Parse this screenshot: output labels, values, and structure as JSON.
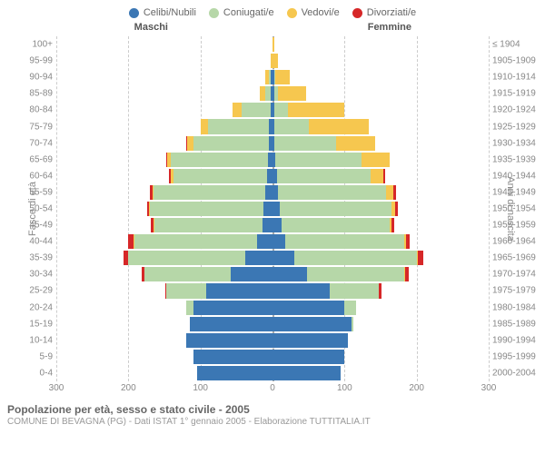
{
  "legend": [
    {
      "label": "Celibi/Nubili",
      "color": "#3b77b4"
    },
    {
      "label": "Coniugati/e",
      "color": "#b6d7a8"
    },
    {
      "label": "Vedovi/e",
      "color": "#f6c74f"
    },
    {
      "label": "Divorziati/e",
      "color": "#d62728"
    }
  ],
  "labels": {
    "male": "Maschi",
    "female": "Femmine",
    "age_axis": "Fasce di età",
    "birth_axis": "Anni di nascita"
  },
  "axis": {
    "max": 300,
    "ticks": [
      300,
      200,
      100,
      0,
      100,
      200,
      300
    ]
  },
  "age_groups": [
    "100+",
    "95-99",
    "90-94",
    "85-89",
    "80-84",
    "75-79",
    "70-74",
    "65-69",
    "60-64",
    "55-59",
    "50-54",
    "45-49",
    "40-44",
    "35-39",
    "30-34",
    "25-29",
    "20-24",
    "15-19",
    "10-14",
    "5-9",
    "0-4"
  ],
  "birth_years": [
    "≤ 1904",
    "1905-1909",
    "1910-1914",
    "1915-1919",
    "1920-1924",
    "1925-1929",
    "1930-1934",
    "1935-1939",
    "1940-1944",
    "1945-1949",
    "1950-1954",
    "1955-1959",
    "1960-1964",
    "1965-1969",
    "1970-1974",
    "1975-1979",
    "1980-1984",
    "1985-1989",
    "1990-1994",
    "1995-1999",
    "2000-2004"
  ],
  "data": [
    {
      "m": [
        0,
        0,
        0,
        0
      ],
      "f": [
        0,
        0,
        2,
        0
      ]
    },
    {
      "m": [
        0,
        0,
        2,
        0
      ],
      "f": [
        0,
        0,
        8,
        0
      ]
    },
    {
      "m": [
        2,
        3,
        5,
        0
      ],
      "f": [
        2,
        2,
        20,
        0
      ]
    },
    {
      "m": [
        2,
        8,
        8,
        0
      ],
      "f": [
        2,
        5,
        40,
        0
      ]
    },
    {
      "m": [
        3,
        40,
        12,
        0
      ],
      "f": [
        3,
        18,
        78,
        0
      ]
    },
    {
      "m": [
        5,
        85,
        10,
        0
      ],
      "f": [
        3,
        48,
        82,
        0
      ]
    },
    {
      "m": [
        5,
        105,
        8,
        2
      ],
      "f": [
        3,
        85,
        55,
        0
      ]
    },
    {
      "m": [
        6,
        135,
        5,
        2
      ],
      "f": [
        4,
        120,
        38,
        0
      ]
    },
    {
      "m": [
        8,
        130,
        3,
        3
      ],
      "f": [
        6,
        130,
        18,
        2
      ]
    },
    {
      "m": [
        10,
        155,
        2,
        3
      ],
      "f": [
        8,
        150,
        10,
        4
      ]
    },
    {
      "m": [
        12,
        158,
        1,
        3
      ],
      "f": [
        10,
        155,
        5,
        4
      ]
    },
    {
      "m": [
        14,
        150,
        1,
        4
      ],
      "f": [
        12,
        150,
        3,
        4
      ]
    },
    {
      "m": [
        22,
        170,
        1,
        7
      ],
      "f": [
        18,
        165,
        2,
        6
      ]
    },
    {
      "m": [
        38,
        162,
        0,
        7
      ],
      "f": [
        30,
        170,
        2,
        7
      ]
    },
    {
      "m": [
        58,
        120,
        0,
        4
      ],
      "f": [
        48,
        135,
        1,
        5
      ]
    },
    {
      "m": [
        92,
        55,
        0,
        2
      ],
      "f": [
        80,
        68,
        0,
        3
      ]
    },
    {
      "m": [
        110,
        10,
        0,
        0
      ],
      "f": [
        100,
        16,
        0,
        0
      ]
    },
    {
      "m": [
        115,
        0,
        0,
        0
      ],
      "f": [
        110,
        2,
        0,
        0
      ]
    },
    {
      "m": [
        120,
        0,
        0,
        0
      ],
      "f": [
        105,
        0,
        0,
        0
      ]
    },
    {
      "m": [
        110,
        0,
        0,
        0
      ],
      "f": [
        100,
        0,
        0,
        0
      ]
    },
    {
      "m": [
        105,
        0,
        0,
        0
      ],
      "f": [
        95,
        0,
        0,
        0
      ]
    }
  ],
  "footer": {
    "title": "Popolazione per età, sesso e stato civile - 2005",
    "subtitle": "COMUNE DI BEVAGNA (PG) - Dati ISTAT 1° gennaio 2005 - Elaborazione TUTTITALIA.IT"
  },
  "style": {
    "grid_color": "#cccccc",
    "center_color": "#aaaaaa",
    "bg": "#ffffff"
  }
}
